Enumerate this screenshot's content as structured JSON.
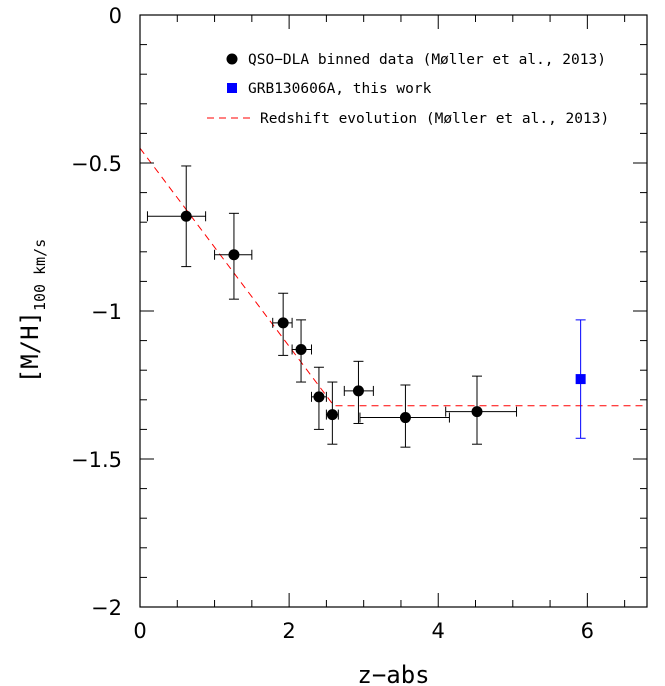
{
  "chart_data": {
    "type": "scatter",
    "title": "",
    "xlabel": "z−abs",
    "ylabel_main": "[M/H]",
    "ylabel_sub": "100 km/s",
    "xlim": [
      0,
      6.8
    ],
    "ylim": [
      -2,
      0
    ],
    "x_ticks": [
      0,
      2,
      4,
      6
    ],
    "x_tick_labels": [
      "0",
      "2",
      "4",
      "6"
    ],
    "y_ticks": [
      0,
      -0.5,
      -1,
      -1.5,
      -2
    ],
    "y_tick_labels": [
      "0",
      "−0.5",
      "−1",
      "−1.5",
      "−2"
    ],
    "grid": false,
    "legend_position": "top-right",
    "series": [
      {
        "name": "QSO−DLA binned data (Møller et al., 2013)",
        "marker": "circle",
        "color": "#000000",
        "points": [
          {
            "x": 0.62,
            "y": -0.68,
            "xlo": 0.1,
            "xhi": 0.88,
            "ylo": -0.85,
            "yhi": -0.51
          },
          {
            "x": 1.26,
            "y": -0.81,
            "xlo": 1.0,
            "xhi": 1.5,
            "ylo": -0.96,
            "yhi": -0.67
          },
          {
            "x": 1.92,
            "y": -1.04,
            "xlo": 1.78,
            "xhi": 2.04,
            "ylo": -1.15,
            "yhi": -0.94
          },
          {
            "x": 2.16,
            "y": -1.13,
            "xlo": 2.04,
            "xhi": 2.3,
            "ylo": -1.24,
            "yhi": -1.03
          },
          {
            "x": 2.4,
            "y": -1.29,
            "xlo": 2.3,
            "xhi": 2.5,
            "ylo": -1.4,
            "yhi": -1.19
          },
          {
            "x": 2.58,
            "y": -1.35,
            "xlo": 2.5,
            "xhi": 2.66,
            "ylo": -1.45,
            "yhi": -1.24
          },
          {
            "x": 2.93,
            "y": -1.27,
            "xlo": 2.74,
            "xhi": 3.13,
            "ylo": -1.38,
            "yhi": -1.17
          },
          {
            "x": 3.56,
            "y": -1.36,
            "xlo": 2.95,
            "xhi": 4.15,
            "ylo": -1.46,
            "yhi": -1.25
          },
          {
            "x": 4.52,
            "y": -1.34,
            "xlo": 4.1,
            "xhi": 5.05,
            "ylo": -1.45,
            "yhi": -1.22
          }
        ]
      },
      {
        "name": "GRB130606A, this work",
        "marker": "square",
        "color": "#0000ff",
        "points": [
          {
            "x": 5.91,
            "y": -1.23,
            "ylo": -1.43,
            "yhi": -1.03
          }
        ]
      },
      {
        "name": "Redshift evolution (Møller et al., 2013)",
        "marker": "dashed-line",
        "color": "#ff0000",
        "line": [
          [
            0,
            -0.45
          ],
          [
            2.6,
            -1.32
          ],
          [
            6.8,
            -1.32
          ]
        ]
      }
    ]
  }
}
